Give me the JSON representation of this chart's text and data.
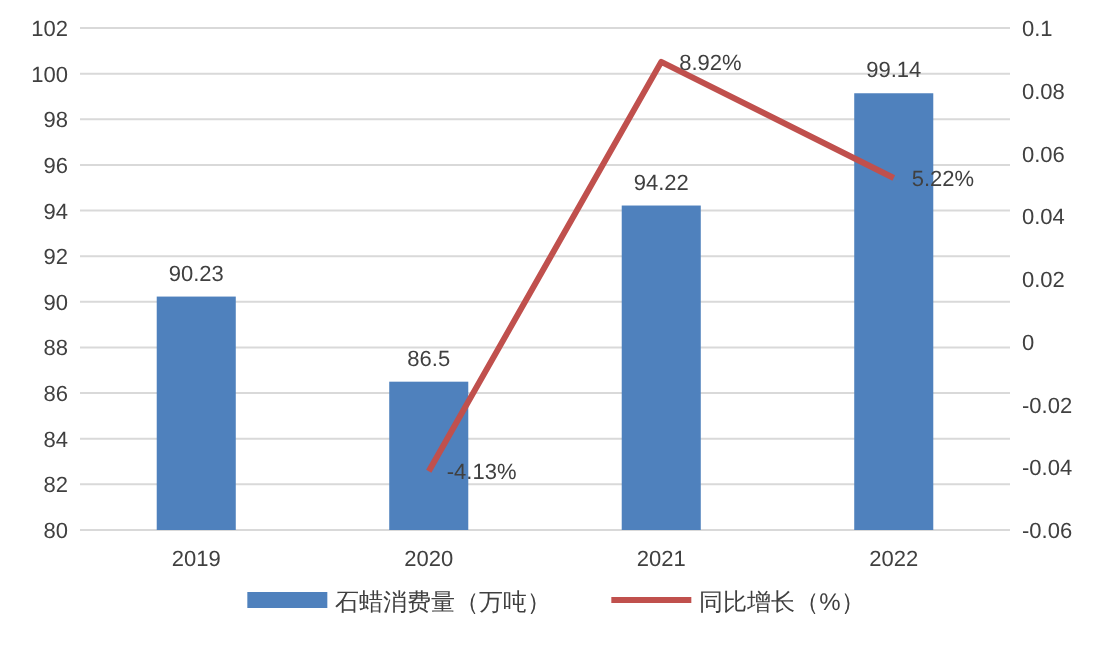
{
  "chart_data": {
    "type": "bar",
    "categories": [
      "2019",
      "2020",
      "2021",
      "2022"
    ],
    "series": [
      {
        "name": "石蜡消费量（万吨）",
        "color": "#4f81bd",
        "values": [
          90.23,
          86.5,
          94.22,
          99.14
        ],
        "value_labels": [
          "90.23",
          "86.5",
          "94.22",
          "99.14"
        ]
      },
      {
        "name": "同比增长（%）",
        "type": "line",
        "axis": "y2",
        "color": "#c0504d",
        "marker": "none",
        "values": [
          null,
          -0.0413,
          0.0892,
          0.0522
        ],
        "value_labels": [
          null,
          "-4.13%",
          "8.92%",
          "5.22%"
        ]
      }
    ],
    "ylim": [
      80,
      102
    ],
    "yticks": [
      80,
      82,
      84,
      86,
      88,
      90,
      92,
      94,
      96,
      98,
      100,
      102
    ],
    "y2lim": [
      -0.06,
      0.1
    ],
    "y2ticks": [
      -0.06,
      -0.04,
      -0.02,
      0,
      0.02,
      0.04,
      0.06,
      0.08,
      0.1
    ],
    "grid": "y",
    "legend": "bottom"
  }
}
